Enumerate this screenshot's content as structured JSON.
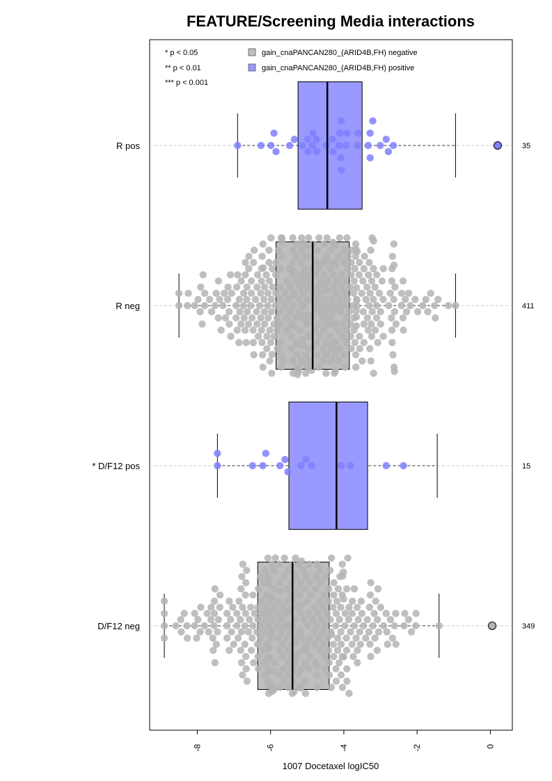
{
  "chart_data": {
    "type": "box",
    "title": "FEATURE/Screening Media interactions",
    "xlabel": "1007 Docetaxel logIC50",
    "xlim": [
      -9.3,
      0.6
    ],
    "x_ticks": [
      -8,
      -6,
      -4,
      -2,
      0
    ],
    "x_tick_labels": [
      "-8",
      "-6",
      "-4",
      "-2",
      "0"
    ],
    "orientation": "horizontal",
    "legend": {
      "position": "top",
      "significance": [
        "* p < 0.05",
        "** p < 0.01",
        "*** p < 0.001"
      ],
      "entries": [
        {
          "label": "gain_cnaPANCAN280_(ARID4B,FH) negative",
          "color": "#bebebe"
        },
        {
          "label": "gain_cnaPANCAN280_(ARID4B,FH) positive",
          "color": "#9999ff"
        }
      ]
    },
    "groups": [
      {
        "label": "R pos",
        "n": "35",
        "status": "positive",
        "box_color": "#9999ff",
        "point_color": "#7f7fff",
        "whisker_low": -6.9,
        "q1": -5.25,
        "median": -4.45,
        "q3": -3.5,
        "whisker_high": -0.95,
        "outliers": [
          0.2
        ],
        "n_points": 35
      },
      {
        "label": "R neg",
        "n": "411",
        "status": "negative",
        "box_color": "#bebebe",
        "point_color": "#b4b4b4",
        "whisker_low": -8.5,
        "q1": -5.85,
        "median": -4.85,
        "q3": -3.85,
        "whisker_high": -0.95,
        "outliers": [],
        "n_points": 411
      },
      {
        "label": "* D/F12 pos",
        "n": "15",
        "status": "positive",
        "box_color": "#9999ff",
        "point_color": "#7f7fff",
        "whisker_low": -7.45,
        "q1": -5.5,
        "median": -4.2,
        "q3": -3.35,
        "whisker_high": -1.45,
        "outliers": [],
        "n_points": 15
      },
      {
        "label": "D/F12 neg",
        "n": "349",
        "status": "negative",
        "box_color": "#bebebe",
        "point_color": "#b4b4b4",
        "whisker_low": -8.9,
        "q1": -6.35,
        "median": -5.4,
        "q3": -4.4,
        "whisker_high": -1.4,
        "outliers": [
          0.05
        ],
        "n_points": 349
      }
    ]
  }
}
